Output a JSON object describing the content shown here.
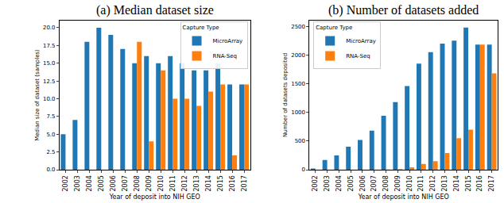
{
  "chart_data": [
    {
      "type": "bar",
      "title": "(a) Median dataset size",
      "x_label": "Year of deposit into NIH GEO",
      "y_label": "Median size of dataset (samples)",
      "legend_title": "Capture Type",
      "legend": "upper right",
      "grid": false,
      "categories": [
        "2002",
        "2003",
        "2004",
        "2005",
        "2006",
        "2007",
        "2008",
        "2009",
        "2010",
        "2011",
        "2012",
        "2013",
        "2014",
        "2015",
        "2016",
        "2017"
      ],
      "series": [
        {
          "name": "MicroArray",
          "color": "#1f77b4",
          "values": [
            5,
            7,
            18,
            20,
            19,
            17,
            15,
            16,
            15,
            16,
            15,
            14,
            14,
            15,
            12,
            12
          ]
        },
        {
          "name": "RNA-Seq",
          "color": "#ff7f0e",
          "values": [
            null,
            null,
            null,
            null,
            null,
            null,
            18,
            4,
            14,
            10,
            10,
            9,
            11,
            12,
            2,
            12
          ]
        }
      ],
      "ylim": [
        0,
        21
      ],
      "yticks": [
        {
          "value": 0,
          "label": "0.0"
        },
        2.5,
        {
          "value": 5,
          "label": "5.0"
        },
        7.5,
        {
          "value": 10,
          "label": "10.0"
        },
        12.5,
        {
          "value": 15,
          "label": "15.0"
        },
        17.5,
        {
          "value": 20,
          "label": "20.0"
        }
      ]
    },
    {
      "type": "bar",
      "title": "(b) Number of datasets added",
      "x_label": "Year of deposit into NIH GEO",
      "y_label": "Number of datasets deposited",
      "legend_title": "Capture Type",
      "legend": "upper left",
      "grid": false,
      "categories": [
        "2002",
        "2003",
        "2004",
        "2005",
        "2006",
        "2007",
        "2008",
        "2009",
        "2010",
        "2011",
        "2012",
        "2013",
        "2014",
        "2015",
        "2016",
        "2017"
      ],
      "series": [
        {
          "name": "MicroArray",
          "color": "#1f77b4",
          "values": [
            20,
            170,
            250,
            400,
            520,
            680,
            940,
            1180,
            1460,
            1850,
            2050,
            2200,
            2250,
            2480,
            2180,
            2180
          ]
        },
        {
          "name": "RNA-Seq",
          "color": "#ff7f0e",
          "values": [
            null,
            null,
            null,
            null,
            null,
            null,
            5,
            10,
            40,
            100,
            150,
            290,
            550,
            700,
            2180,
            1680
          ]
        }
      ],
      "ylim": [
        0,
        2600
      ],
      "yticks": [
        0,
        500,
        1000,
        1500,
        2000,
        2500
      ]
    }
  ]
}
